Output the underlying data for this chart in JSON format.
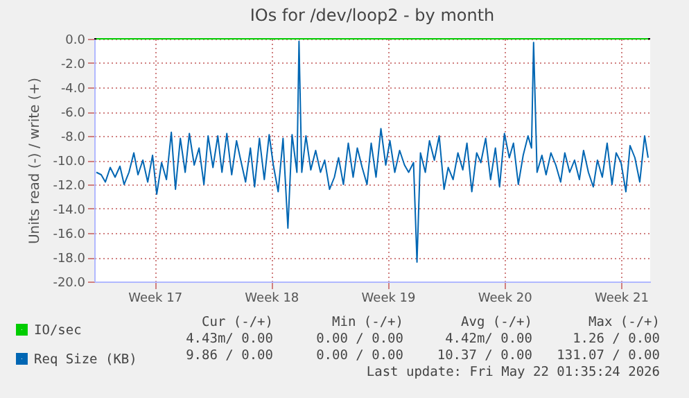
{
  "chart_data": {
    "type": "line",
    "title": "IOs for /dev/loop2 - by month",
    "ylabel": "Units read (-) / write (+)",
    "xlim": [
      "2026-04-16T09:00",
      "2026-05-19T18:00"
    ],
    "xticks": [
      {
        "value": "2026-04-20",
        "label": "Week 17"
      },
      {
        "value": "2026-04-27",
        "label": "Week 18"
      },
      {
        "value": "2026-05-04",
        "label": "Week 19"
      },
      {
        "value": "2026-05-11",
        "label": "Week 20"
      },
      {
        "value": "2026-05-18",
        "label": "Week 21"
      }
    ],
    "ylim": [
      -20,
      0
    ],
    "yticks": [
      {
        "value": -20,
        "label": "-20.0"
      },
      {
        "value": -18,
        "label": "-18.0"
      },
      {
        "value": -16,
        "label": "-16.0"
      },
      {
        "value": -14,
        "label": "-14.0"
      },
      {
        "value": -12,
        "label": "-12.0"
      },
      {
        "value": -10,
        "label": "-10.0"
      },
      {
        "value": -8,
        "label": "-8.0"
      },
      {
        "value": -6,
        "label": "-6.0"
      },
      {
        "value": -4,
        "label": "-4.0"
      },
      {
        "value": -2,
        "label": "-2.0"
      },
      {
        "value": 0,
        "label": "0.0"
      }
    ],
    "grid": true,
    "legend": "bottom left",
    "ref_lines": [
      {
        "axis": "y",
        "value": 0,
        "color": "#000000"
      }
    ],
    "series": [
      {
        "name": "IO/sec",
        "color": "#00cc00",
        "x": [
          "2026-04-16T12:00",
          "2026-05-19T15:00"
        ],
        "values": [
          0.0,
          0.0
        ]
      },
      {
        "name": "Req Size (KB)",
        "color": "#0066b3",
        "x": [
          "2026-04-16T12:00",
          "2026-04-16T19:00",
          "2026-04-17T01:00",
          "2026-04-17T08:00",
          "2026-04-17T15:00",
          "2026-04-17T22:00",
          "2026-04-18T04:00",
          "2026-04-18T11:00",
          "2026-04-18T18:00",
          "2026-04-19T00:00",
          "2026-04-19T07:00",
          "2026-04-19T14:00",
          "2026-04-19T21:00",
          "2026-04-20T03:00",
          "2026-04-20T10:00",
          "2026-04-20T17:00",
          "2026-04-21T00:00",
          "2026-04-21T06:00",
          "2026-04-21T13:00",
          "2026-04-21T20:00",
          "2026-04-22T02:00",
          "2026-04-22T09:00",
          "2026-04-22T16:00",
          "2026-04-22T23:00",
          "2026-04-23T05:00",
          "2026-04-23T12:00",
          "2026-04-23T19:00",
          "2026-04-24T01:00",
          "2026-04-24T08:00",
          "2026-04-24T15:00",
          "2026-04-24T22:00",
          "2026-04-25T04:00",
          "2026-04-25T11:00",
          "2026-04-25T18:00",
          "2026-04-26T00:00",
          "2026-04-26T07:00",
          "2026-04-26T14:00",
          "2026-04-26T21:00",
          "2026-04-27T03:00",
          "2026-04-27T10:00",
          "2026-04-27T17:00",
          "2026-04-28T00:00",
          "2026-04-28T06:00",
          "2026-04-28T13:00",
          "2026-04-28T16:00",
          "2026-04-28T20:00",
          "2026-04-29T02:00",
          "2026-04-29T09:00",
          "2026-04-29T16:00",
          "2026-04-29T23:00",
          "2026-04-30T05:00",
          "2026-04-30T12:00",
          "2026-04-30T19:00",
          "2026-05-01T01:00",
          "2026-05-01T08:00",
          "2026-05-01T15:00",
          "2026-05-01T22:00",
          "2026-05-02T04:00",
          "2026-05-02T11:00",
          "2026-05-02T18:00",
          "2026-05-03T00:00",
          "2026-05-03T07:00",
          "2026-05-03T14:00",
          "2026-05-03T21:00",
          "2026-05-04T03:00",
          "2026-05-04T10:00",
          "2026-05-04T17:00",
          "2026-05-05T00:00",
          "2026-05-05T06:00",
          "2026-05-05T13:00",
          "2026-05-05T18:00",
          "2026-05-05T23:00",
          "2026-05-06T06:00",
          "2026-05-06T12:00",
          "2026-05-06T19:00",
          "2026-05-07T02:00",
          "2026-05-07T09:00",
          "2026-05-07T15:00",
          "2026-05-07T22:00",
          "2026-05-08T05:00",
          "2026-05-08T12:00",
          "2026-05-08T18:00",
          "2026-05-09T01:00",
          "2026-05-09T08:00",
          "2026-05-09T14:00",
          "2026-05-09T21:00",
          "2026-05-10T04:00",
          "2026-05-10T11:00",
          "2026-05-10T17:00",
          "2026-05-11T00:00",
          "2026-05-11T07:00",
          "2026-05-11T13:00",
          "2026-05-11T20:00",
          "2026-05-12T03:00",
          "2026-05-12T10:00",
          "2026-05-12T15:00",
          "2026-05-12T18:00",
          "2026-05-12T23:00",
          "2026-05-13T06:00",
          "2026-05-13T12:00",
          "2026-05-13T19:00",
          "2026-05-14T02:00",
          "2026-05-14T09:00",
          "2026-05-14T15:00",
          "2026-05-14T22:00",
          "2026-05-15T05:00",
          "2026-05-15T12:00",
          "2026-05-15T18:00",
          "2026-05-16T01:00",
          "2026-05-16T08:00",
          "2026-05-16T14:00",
          "2026-05-16T21:00",
          "2026-05-17T04:00",
          "2026-05-17T11:00",
          "2026-05-17T17:00",
          "2026-05-18T00:00",
          "2026-05-18T07:00",
          "2026-05-18T13:00",
          "2026-05-18T20:00",
          "2026-05-19T03:00",
          "2026-05-19T10:00",
          "2026-05-19T15:00"
        ],
        "values": [
          -11.0,
          -11.2,
          -11.8,
          -10.6,
          -11.4,
          -10.5,
          -12.0,
          -11.0,
          -9.4,
          -11.2,
          -10.0,
          -11.8,
          -9.6,
          -12.8,
          -10.2,
          -11.6,
          -7.7,
          -12.4,
          -8.2,
          -11.0,
          -7.8,
          -10.4,
          -9.0,
          -12.0,
          -8.0,
          -10.6,
          -8.0,
          -11.0,
          -7.8,
          -11.2,
          -8.4,
          -10.0,
          -11.8,
          -9.0,
          -12.2,
          -8.2,
          -11.6,
          -7.9,
          -10.4,
          -12.6,
          -8.2,
          -15.6,
          -7.9,
          -11.0,
          -0.2,
          -11.0,
          -8.0,
          -10.8,
          -9.2,
          -11.0,
          -10.0,
          -12.4,
          -11.4,
          -9.8,
          -12.0,
          -8.6,
          -11.4,
          -9.0,
          -10.6,
          -12.0,
          -8.6,
          -11.4,
          -7.4,
          -10.4,
          -8.4,
          -11.0,
          -9.2,
          -10.4,
          -11.0,
          -10.2,
          -18.4,
          -9.4,
          -11.0,
          -8.4,
          -10.0,
          -8.0,
          -12.4,
          -10.6,
          -11.6,
          -9.4,
          -10.8,
          -8.6,
          -12.6,
          -9.4,
          -10.2,
          -8.2,
          -11.6,
          -9.0,
          -12.2,
          -7.8,
          -9.8,
          -8.6,
          -12.0,
          -9.6,
          -8.0,
          -9.0,
          -0.3,
          -11.0,
          -9.6,
          -11.2,
          -9.4,
          -10.4,
          -11.8,
          -9.4,
          -11.0,
          -10.0,
          -11.6,
          -9.2,
          -11.0,
          -12.2,
          -10.0,
          -11.4,
          -8.6,
          -12.0,
          -9.4,
          -10.2,
          -12.6,
          -8.8,
          -9.8,
          -11.8,
          -8.0,
          -9.8
        ]
      }
    ],
    "annotations": [
      "Cur (-/+)",
      "Min (-/+)",
      "Avg (-/+)",
      "Max (-/+)",
      "4.43m/ 0.00",
      "0.00 / 0.00",
      "4.42m/ 0.00",
      "1.26 / 0.00",
      "9.86 / 0.00",
      "0.00 / 0.00",
      "10.37 / 0.00",
      "131.07 / 0.00",
      "Last update: Fri May 22 01:35:24 2026"
    ]
  }
}
